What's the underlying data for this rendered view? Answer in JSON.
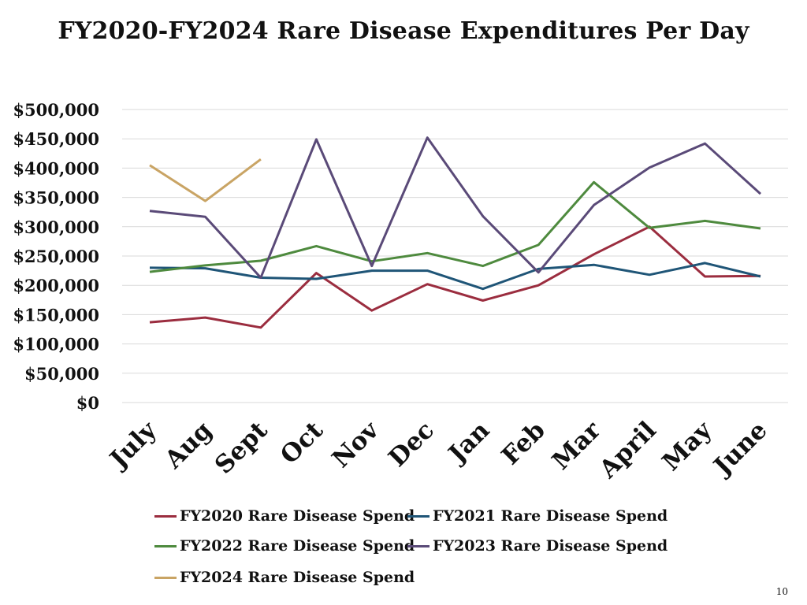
{
  "page": {
    "number": "10"
  },
  "chart_data": {
    "type": "line",
    "title": "FY2020-FY2024 Rare Disease Expenditures Per Day",
    "xlabel": "",
    "ylabel": "",
    "categories": [
      "July",
      "Aug",
      "Sept",
      "Oct",
      "Nov",
      "Dec",
      "Jan",
      "Feb",
      "Mar",
      "April",
      "May",
      "June"
    ],
    "ylim": [
      0,
      500000
    ],
    "yticks": [
      0,
      50000,
      100000,
      150000,
      200000,
      250000,
      300000,
      350000,
      400000,
      450000,
      500000
    ],
    "ytick_labels": [
      "$0",
      "$50,000",
      "$100,000",
      "$150,000",
      "$200,000",
      "$250,000",
      "$300,000",
      "$350,000",
      "$400,000",
      "$450,000",
      "$500,000"
    ],
    "grid": true,
    "legend_position": "bottom",
    "series": [
      {
        "name": "FY2020 Rare Disease Spend",
        "color": "#9b2d3f",
        "values": [
          137000,
          145000,
          128000,
          221000,
          157000,
          202000,
          174000,
          200000,
          253000,
          300000,
          215000,
          216000
        ]
      },
      {
        "name": "FY2021 Rare Disease Spend",
        "color": "#1f5577",
        "values": [
          230000,
          229000,
          213000,
          211000,
          225000,
          225000,
          194000,
          228000,
          235000,
          218000,
          238000,
          215000
        ]
      },
      {
        "name": "FY2022 Rare Disease Spend",
        "color": "#4e8a3e",
        "values": [
          223000,
          234000,
          242000,
          267000,
          241000,
          255000,
          233000,
          269000,
          376000,
          298000,
          310000,
          297000
        ]
      },
      {
        "name": "FY2023 Rare Disease Spend",
        "color": "#5a4a78",
        "values": [
          327000,
          317000,
          213000,
          449000,
          233000,
          452000,
          318000,
          222000,
          337000,
          401000,
          442000,
          356000
        ]
      },
      {
        "name": "FY2024 Rare Disease Spend",
        "color": "#c9a464",
        "values": [
          405000,
          344000,
          415000,
          null,
          null,
          null,
          null,
          null,
          null,
          null,
          null,
          null
        ]
      }
    ]
  }
}
